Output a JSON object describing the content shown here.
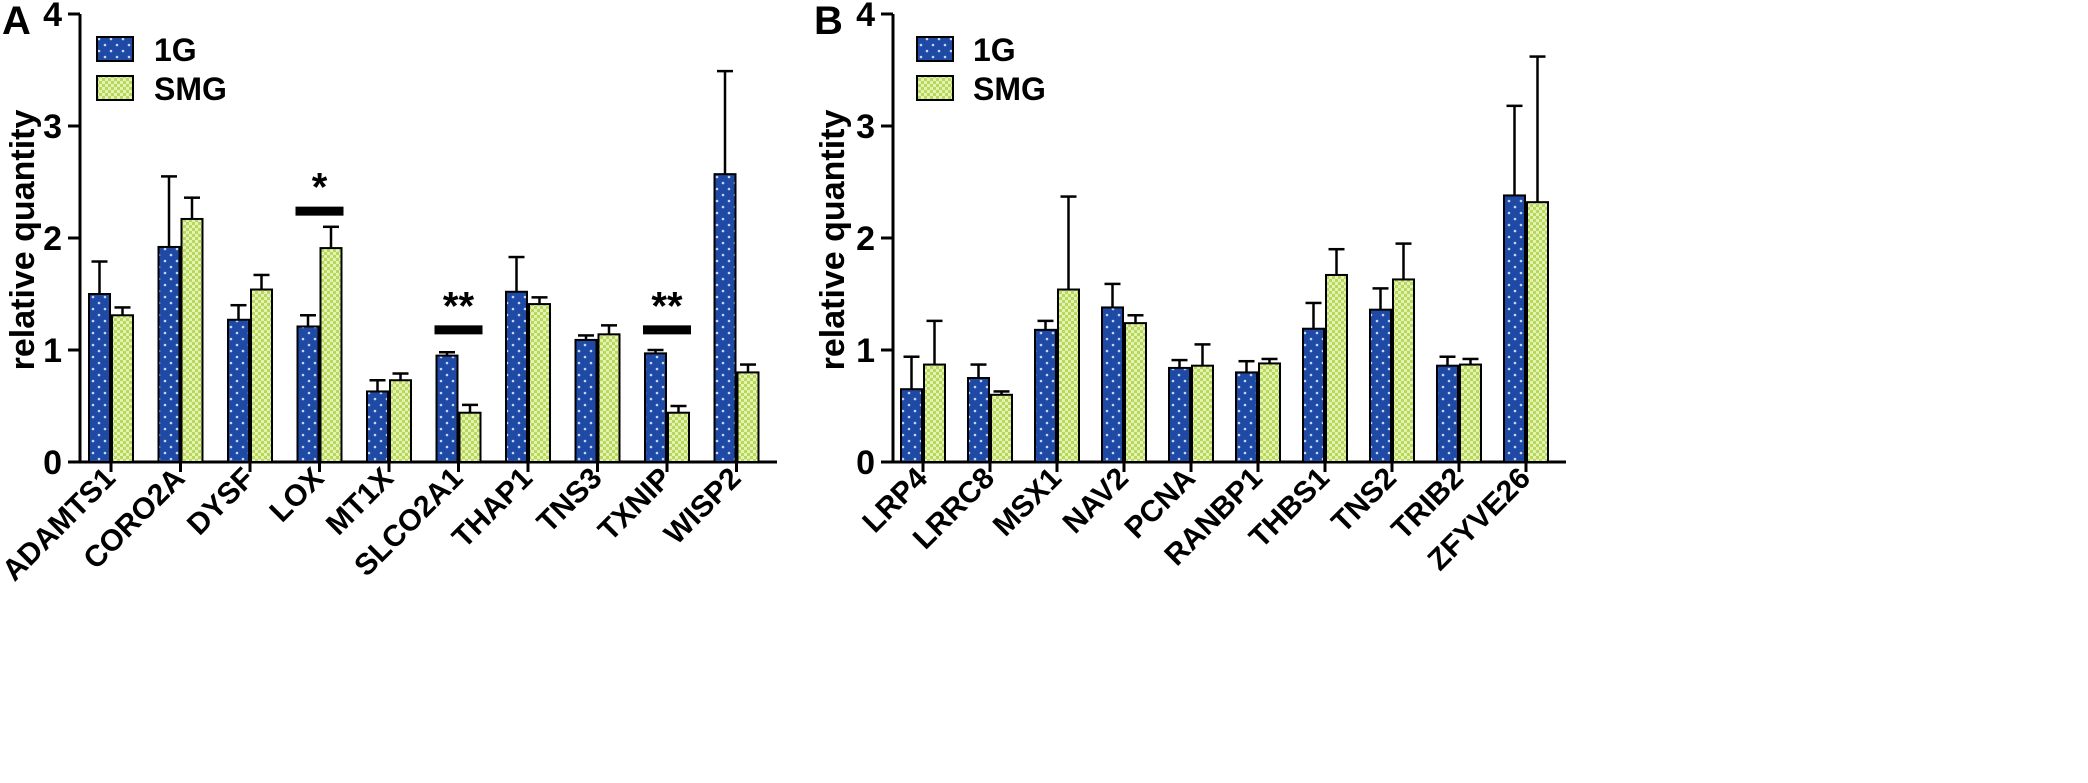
{
  "chart_data": [
    {
      "type": "bar",
      "panel": "A",
      "ylabel": "relative quantity",
      "ylim": [
        0,
        4
      ],
      "yticks": [
        "0",
        "1",
        "2",
        "3",
        "4"
      ],
      "legend": [
        {
          "name": "1G",
          "color": "#1e4aa6"
        },
        {
          "name": "SMG",
          "color": "#cce68a"
        }
      ],
      "categories": [
        "ADAMTS1",
        "CORO2A",
        "DYSF",
        "LOX",
        "MT1X",
        "SLCO2A1",
        "THAP1",
        "TNS3",
        "TXNIP",
        "WISP2"
      ],
      "series": [
        {
          "name": "1G",
          "values": [
            1.5,
            1.92,
            1.27,
            1.21,
            0.63,
            0.95,
            1.52,
            1.09,
            0.97,
            2.57
          ],
          "errors": [
            0.29,
            0.63,
            0.13,
            0.1,
            0.1,
            0.03,
            0.31,
            0.04,
            0.03,
            0.92
          ]
        },
        {
          "name": "SMG",
          "values": [
            1.31,
            2.17,
            1.54,
            1.91,
            0.73,
            0.44,
            1.41,
            1.14,
            0.44,
            0.8
          ],
          "errors": [
            0.07,
            0.19,
            0.13,
            0.19,
            0.06,
            0.07,
            0.06,
            0.08,
            0.06,
            0.07
          ]
        }
      ],
      "annotations": [
        {
          "category": "LOX",
          "text": "*",
          "y": 2.28
        },
        {
          "category": "SLCO2A1",
          "text": "**",
          "y": 1.22
        },
        {
          "category": "TXNIP",
          "text": "**",
          "y": 1.22
        }
      ]
    },
    {
      "type": "bar",
      "panel": "B",
      "ylabel": "relative quantity",
      "ylim": [
        0,
        4
      ],
      "yticks": [
        "0",
        "1",
        "2",
        "3",
        "4"
      ],
      "legend": [
        {
          "name": "1G",
          "color": "#1e4aa6"
        },
        {
          "name": "SMG",
          "color": "#cce68a"
        }
      ],
      "categories": [
        "LRP4",
        "LRRC8",
        "MSX1",
        "NAV2",
        "PCNA",
        "RANBP1",
        "THBS1",
        "TNS2",
        "TRIB2",
        "ZFYVE26"
      ],
      "series": [
        {
          "name": "1G",
          "values": [
            0.65,
            0.75,
            1.18,
            1.38,
            0.84,
            0.8,
            1.19,
            1.36,
            0.86,
            2.38
          ],
          "errors": [
            0.29,
            0.12,
            0.08,
            0.21,
            0.07,
            0.1,
            0.23,
            0.19,
            0.08,
            0.8
          ]
        },
        {
          "name": "SMG",
          "values": [
            0.87,
            0.6,
            1.54,
            1.24,
            0.86,
            0.88,
            1.67,
            1.63,
            0.87,
            2.32
          ],
          "errors": [
            0.39,
            0.03,
            0.83,
            0.07,
            0.19,
            0.04,
            0.23,
            0.32,
            0.05,
            1.3
          ]
        }
      ],
      "annotations": []
    }
  ]
}
